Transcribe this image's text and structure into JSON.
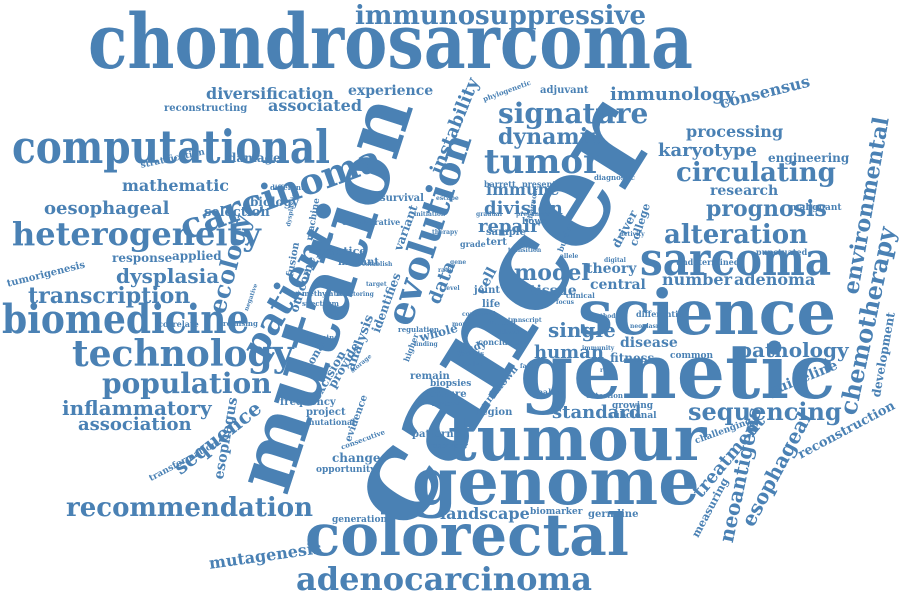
{
  "accent_color": "#4a81b4",
  "words": [
    "chondrosarcoma",
    "cancer",
    "mutation",
    "genetic",
    "tumour",
    "genome",
    "colorectal",
    "science",
    "adenocarcinoma",
    "computational",
    "sarcoma",
    "biomedicine",
    "heterogeneity",
    "carcinoma",
    "technology",
    "evolution",
    "patient",
    "tumor",
    "signature",
    "population",
    "recommendation",
    "alteration",
    "circulating",
    "immunosuppressive",
    "sequencing",
    "transcription",
    "chemotherapy",
    "environmental",
    "prognosis",
    "inflammatory",
    "dynamic",
    "ecology",
    "immunology",
    "pathology",
    "processing",
    "dysplasia",
    "sequence",
    "karyotype",
    "association",
    "oesophageal",
    "esophageal",
    "neoantigens",
    "treatment",
    "mutagenesis",
    "landscape",
    "model",
    "human",
    "standard",
    "number",
    "adenoma",
    "consensus",
    "diversification",
    "associated",
    "experience",
    "instability",
    "mathematic",
    "selection",
    "damage",
    "research",
    "engineering",
    "guideline",
    "reconstruction",
    "development",
    "biology",
    "division",
    "repair",
    "immune",
    "single",
    "disease",
    "central",
    "theory",
    "tissue",
    "data",
    "whole",
    "study",
    "cell",
    "joint",
    "life",
    "barrett",
    "present",
    "survival",
    "practice",
    "response",
    "applied",
    "mutant",
    "analysis",
    "provide",
    "excision",
    "clonal",
    "outcome",
    "fusion",
    "machine",
    "frequency",
    "project",
    "feature",
    "remain",
    "biopsies",
    "region",
    "healthy",
    "pattern",
    "change",
    "generation",
    "biomarker",
    "germline",
    "esophagus",
    "transformation",
    "tumorigenesis",
    "stratification",
    "reconstructing",
    "adjuvant",
    "phylogenetic",
    "diagnostic",
    "collaborative",
    "identifies",
    "variant",
    "sample",
    "tert",
    "bowel",
    "grade",
    "driver",
    "college",
    "differential",
    "growing",
    "subclonal",
    "challenging",
    "measuring",
    "malignant",
    "punctuated",
    "undetermined",
    "correlate",
    "promising",
    "methylation",
    "spectrum",
    "learning",
    "evidence",
    "mutational",
    "consecutive",
    "opportunity",
    "responder",
    "conclusion",
    "colitis",
    "higher",
    "history",
    "unknown",
    "clinical",
    "fitness",
    "common",
    "detection",
    "neoplasm",
    "diagnose",
    "burden",
    "gradual",
    "precancer",
    "transition",
    "escape",
    "initiation",
    "different",
    "dysplastic",
    "negative",
    "monitoring",
    "storage",
    "establish",
    "compared",
    "regulation",
    "finding",
    "limited",
    "more",
    "blood",
    "evolve",
    "allele",
    "activity",
    "method",
    "gene",
    "rate",
    "focus",
    "transcript",
    "factor",
    "role",
    "target",
    "level",
    "immunity",
    "digital",
    "therapy",
    "stage"
  ]
}
